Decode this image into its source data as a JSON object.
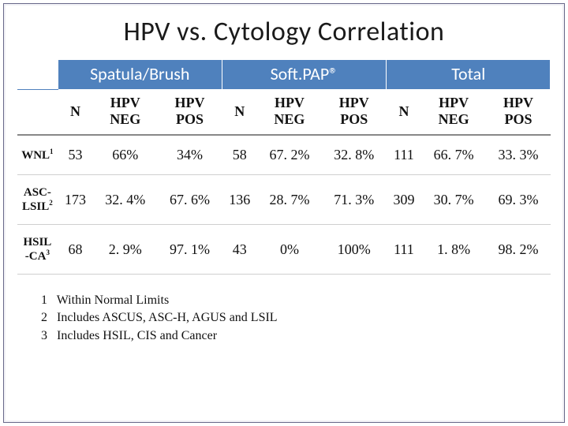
{
  "title": "HPV vs. Cytology Correlation",
  "groups": {
    "g1": "Spatula/Brush",
    "g2": "Soft.PAP®",
    "g3": "Total"
  },
  "subheads": {
    "n": "N",
    "hpv_neg_1": "HPV",
    "hpv_neg_2": "NEG",
    "hpv_pos_1": "HPV",
    "hpv_pos_2": "POS"
  },
  "rows": [
    {
      "label_main": "WNL",
      "label_sup": "1",
      "spatula": {
        "n": "53",
        "neg": "66%",
        "pos": "34%"
      },
      "softpap": {
        "n": "58",
        "neg": "67. 2%",
        "pos": "32. 8%"
      },
      "total": {
        "n": "111",
        "neg": "66. 7%",
        "pos": "33. 3%"
      }
    },
    {
      "label_main": "ASC-LSIL",
      "label_sup": "2",
      "spatula": {
        "n": "173",
        "neg": "32. 4%",
        "pos": "67. 6%"
      },
      "softpap": {
        "n": "136",
        "neg": "28. 7%",
        "pos": "71. 3%"
      },
      "total": {
        "n": "309",
        "neg": "30. 7%",
        "pos": "69. 3%"
      }
    },
    {
      "label_main": "HSIL -CA",
      "label_sup": "3",
      "spatula": {
        "n": "68",
        "neg": "2. 9%",
        "pos": "97. 1%"
      },
      "softpap": {
        "n": "43",
        "neg": "0%",
        "pos": "100%"
      },
      "total": {
        "n": "111",
        "neg": "1. 8%",
        "pos": "98. 2%"
      }
    }
  ],
  "footnotes": [
    {
      "num": "1",
      "text": "Within Normal Limits"
    },
    {
      "num": "2",
      "text": "Includes ASCUS, ASC-H, AGUS and LSIL"
    },
    {
      "num": "3",
      "text": "Includes HSIL, CIS and Cancer"
    }
  ],
  "colors": {
    "header_bg": "#4f81bd",
    "header_fg": "#ffffff",
    "frame": "#6a6a8a"
  }
}
